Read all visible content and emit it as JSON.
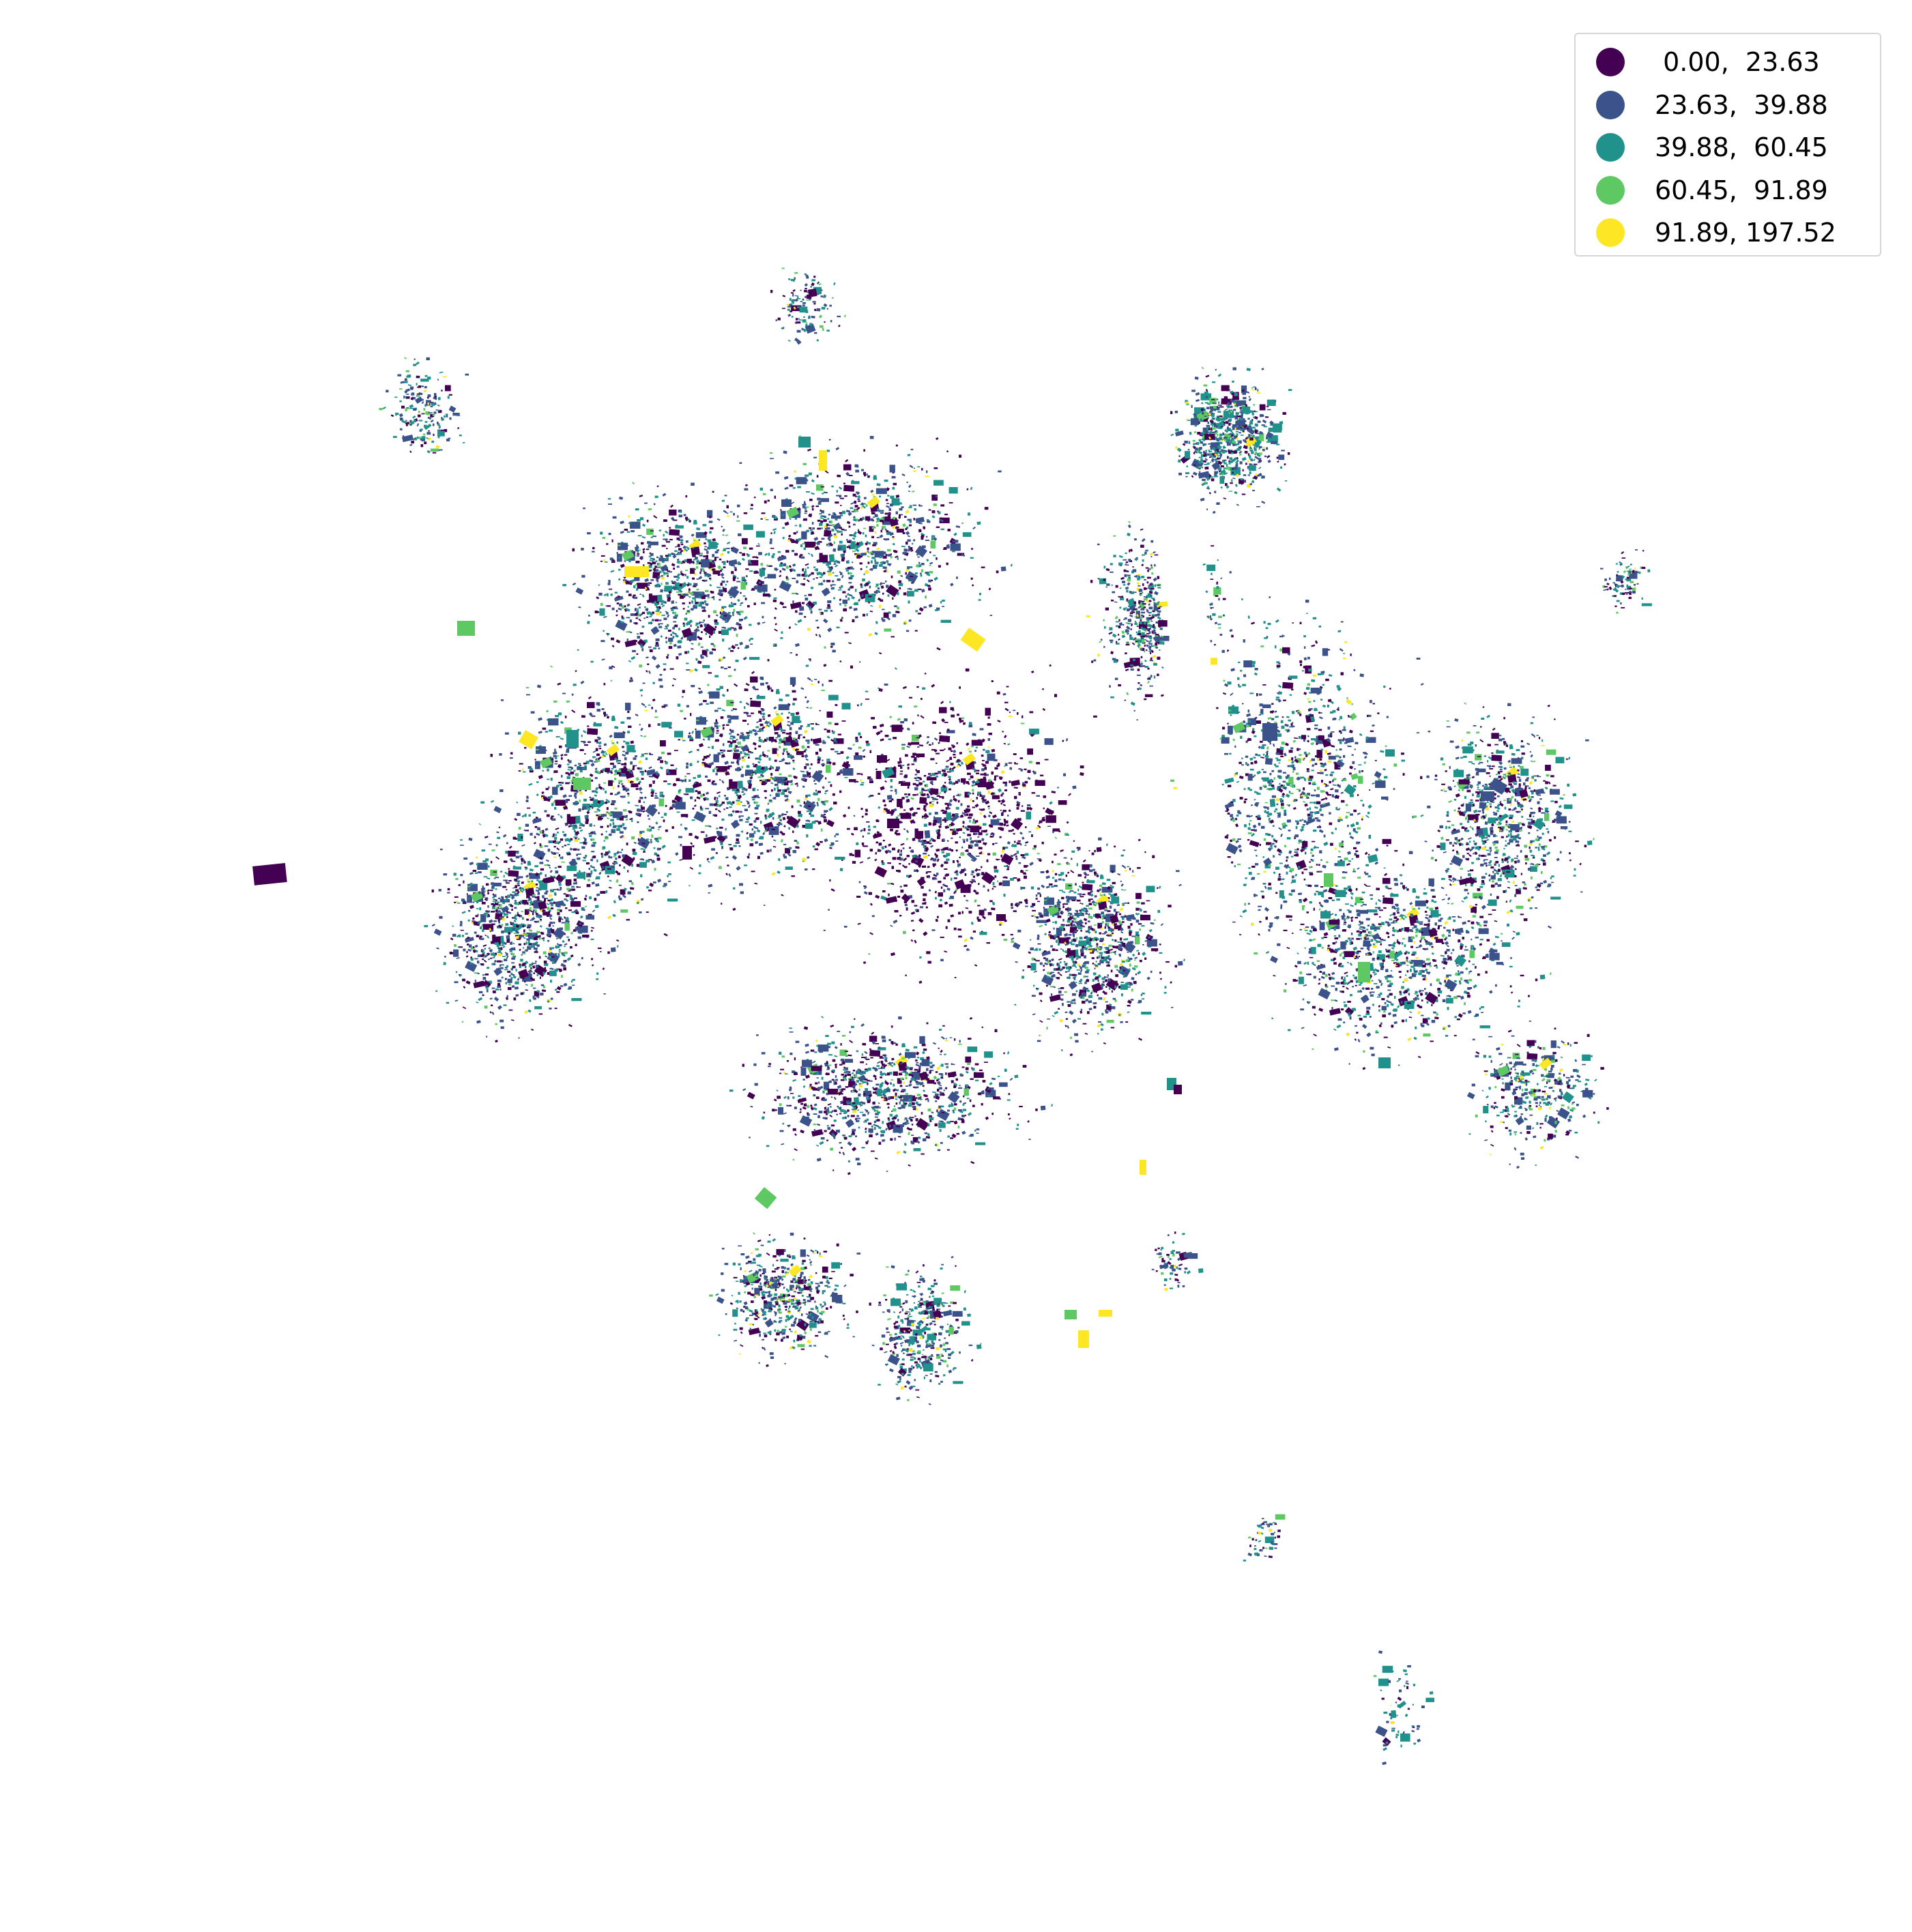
{
  "map": {
    "legend": [
      {
        "label": " 0.00,  23.63",
        "color": "#440154"
      },
      {
        "label": "23.63,  39.88",
        "color": "#3b528b"
      },
      {
        "label": "39.88,  60.45",
        "color": "#21918c"
      },
      {
        "label": "60.45,  91.89",
        "color": "#5ec962"
      },
      {
        "label": "91.89, 197.52",
        "color": "#fde725"
      }
    ]
  }
}
